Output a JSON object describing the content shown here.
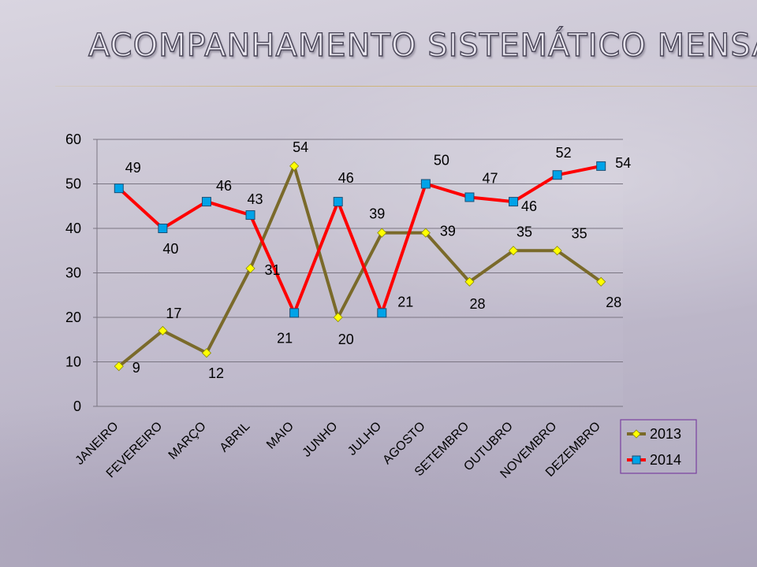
{
  "slide": {
    "title": "ACOMPANHAMENTO SISTEMÁTICO MENSAL"
  },
  "chart_data": {
    "type": "line",
    "title": "",
    "xlabel": "",
    "ylabel": "",
    "ylim": [
      0,
      60
    ],
    "yticks": [
      0,
      10,
      20,
      30,
      40,
      50,
      60
    ],
    "grid": true,
    "legend_position": "right",
    "categories": [
      "JANEIRO",
      "FEVEREIRO",
      "MARÇO",
      "ABRIL",
      "MAIO",
      "JUNHO",
      "JULHO",
      "AGOSTO",
      "SETEMBRO",
      "OUTUBRO",
      "NOVEMBRO",
      "DEZEMBRO"
    ],
    "series": [
      {
        "name": "2013",
        "values": [
          9,
          17,
          12,
          31,
          54,
          20,
          39,
          39,
          28,
          35,
          35,
          28
        ],
        "color": "#7a6a2a",
        "marker_color": "#ffff00",
        "marker": "diamond"
      },
      {
        "name": "2014",
        "values": [
          49,
          40,
          46,
          43,
          21,
          46,
          21,
          50,
          47,
          46,
          52,
          54
        ],
        "color": "#ff0000",
        "marker_color": "#00a3e8",
        "marker": "square"
      }
    ]
  }
}
